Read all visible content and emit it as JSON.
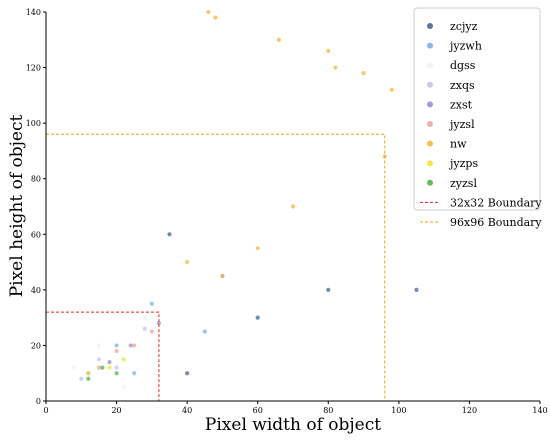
{
  "chart_data": {
    "type": "scatter",
    "title": "",
    "xlabel": "Pixel width of object",
    "ylabel": "Pixel height of object",
    "xlim": [
      0,
      140
    ],
    "ylim": [
      0,
      140
    ],
    "xticks": [
      "0",
      "20",
      "40",
      "60",
      "80",
      "100",
      "120",
      "140"
    ],
    "yticks": [
      "0",
      "20",
      "40",
      "60",
      "80",
      "100",
      "120",
      "140"
    ],
    "grid": false,
    "legend_position": "top-right",
    "series": [
      {
        "name": "zcjyz",
        "color": "#4a6494",
        "points": [
          [
            40,
            10
          ],
          [
            60,
            30
          ],
          [
            80,
            40
          ],
          [
            35,
            60
          ],
          [
            105,
            40
          ]
        ]
      },
      {
        "name": "jyzwh",
        "color": "#7fb0e8",
        "points": [
          [
            20,
            20
          ],
          [
            30,
            35
          ],
          [
            45,
            25
          ],
          [
            25,
            10
          ],
          [
            50,
            45
          ]
        ]
      },
      {
        "name": "dgss",
        "color": "#f3eef8",
        "points": [
          [
            8,
            12
          ],
          [
            15,
            20
          ],
          [
            22,
            5
          ],
          [
            28,
            30
          ]
        ]
      },
      {
        "name": "zxqs",
        "color": "#c9c0ef",
        "points": [
          [
            10,
            8
          ],
          [
            15,
            15
          ],
          [
            20,
            12
          ],
          [
            28,
            26
          ]
        ]
      },
      {
        "name": "zxst",
        "color": "#9b8fd0",
        "points": [
          [
            12,
            10
          ],
          [
            18,
            14
          ],
          [
            24,
            20
          ],
          [
            32,
            28
          ]
        ]
      },
      {
        "name": "jyzsl",
        "color": "#f4a39a",
        "points": [
          [
            15,
            12
          ],
          [
            20,
            18
          ],
          [
            25,
            20
          ],
          [
            30,
            25
          ]
        ]
      },
      {
        "name": "nw",
        "color": "#f6b53f",
        "points": [
          [
            40,
            50
          ],
          [
            50,
            45
          ],
          [
            60,
            55
          ],
          [
            70,
            70
          ],
          [
            46,
            140
          ],
          [
            48,
            138
          ],
          [
            66,
            130
          ],
          [
            80,
            126
          ],
          [
            82,
            120
          ],
          [
            90,
            118
          ],
          [
            98,
            112
          ],
          [
            106,
            130
          ],
          [
            96,
            88
          ]
        ]
      },
      {
        "name": "jyzps",
        "color": "#f2e33c",
        "points": [
          [
            12,
            10
          ],
          [
            18,
            12
          ],
          [
            22,
            15
          ]
        ]
      },
      {
        "name": "zyzsl",
        "color": "#58b24a",
        "points": [
          [
            12,
            8
          ],
          [
            16,
            12
          ],
          [
            20,
            10
          ]
        ]
      }
    ],
    "boundaries": [
      {
        "name": "32x32 Boundary",
        "color": "#e8281e",
        "size": 32
      },
      {
        "name": "96x96 Boundary",
        "color": "#f2a31b",
        "size": 96
      }
    ]
  }
}
